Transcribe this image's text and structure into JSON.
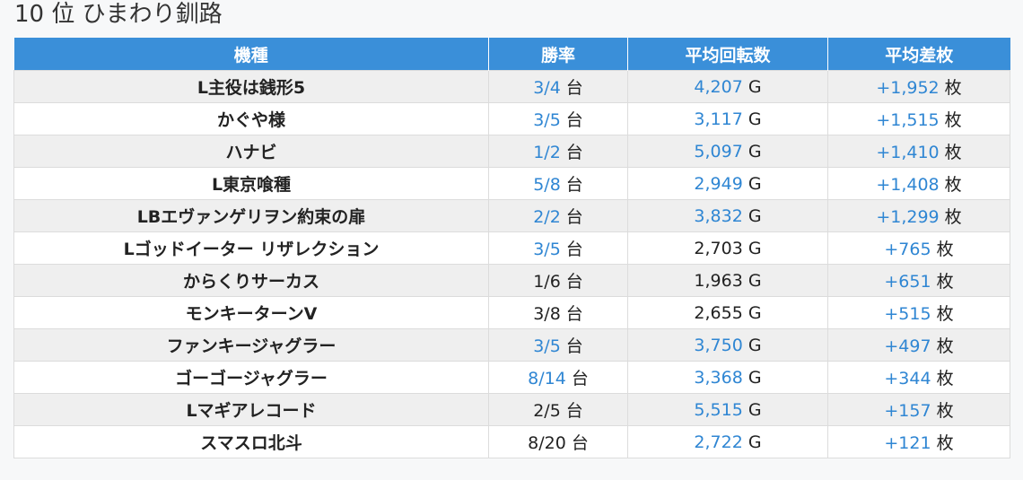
{
  "page_title": "10 位 ひまわり釧路",
  "columns": [
    "機種",
    "勝率",
    "平均回転数",
    "平均差枚"
  ],
  "units": {
    "rate": "台",
    "spins": "G",
    "diff": "枚"
  },
  "colors": {
    "header_bg": "#3a8fd9",
    "highlight": "#2f86d3",
    "row_alt": "#efefef"
  },
  "rows": [
    {
      "name": "L主役は銭形5",
      "rate": "3/4",
      "rate_hl": true,
      "spins": "4,207",
      "spins_hl": true,
      "diff": "+1,952"
    },
    {
      "name": "かぐや様",
      "rate": "3/5",
      "rate_hl": true,
      "spins": "3,117",
      "spins_hl": true,
      "diff": "+1,515"
    },
    {
      "name": "ハナビ",
      "rate": "1/2",
      "rate_hl": true,
      "spins": "5,097",
      "spins_hl": true,
      "diff": "+1,410"
    },
    {
      "name": "L東京喰種",
      "rate": "5/8",
      "rate_hl": true,
      "spins": "2,949",
      "spins_hl": true,
      "diff": "+1,408"
    },
    {
      "name": "LBエヴァンゲリヲン約束の扉",
      "rate": "2/2",
      "rate_hl": true,
      "spins": "3,832",
      "spins_hl": true,
      "diff": "+1,299"
    },
    {
      "name": "Lゴッドイーター リザレクション",
      "rate": "3/5",
      "rate_hl": true,
      "spins": "2,703",
      "spins_hl": false,
      "diff": "+765"
    },
    {
      "name": "からくりサーカス",
      "rate": "1/6",
      "rate_hl": false,
      "spins": "1,963",
      "spins_hl": false,
      "diff": "+651"
    },
    {
      "name": "モンキーターンV",
      "rate": "3/8",
      "rate_hl": false,
      "spins": "2,655",
      "spins_hl": false,
      "diff": "+515"
    },
    {
      "name": "ファンキージャグラー",
      "rate": "3/5",
      "rate_hl": true,
      "spins": "3,750",
      "spins_hl": true,
      "diff": "+497"
    },
    {
      "name": "ゴーゴージャグラー",
      "rate": "8/14",
      "rate_hl": true,
      "spins": "3,368",
      "spins_hl": true,
      "diff": "+344"
    },
    {
      "name": "Lマギアレコード",
      "rate": "2/5",
      "rate_hl": false,
      "spins": "5,515",
      "spins_hl": true,
      "diff": "+157"
    },
    {
      "name": "スマスロ北斗",
      "rate": "8/20",
      "rate_hl": false,
      "spins": "2,722",
      "spins_hl": true,
      "diff": "+121"
    }
  ]
}
